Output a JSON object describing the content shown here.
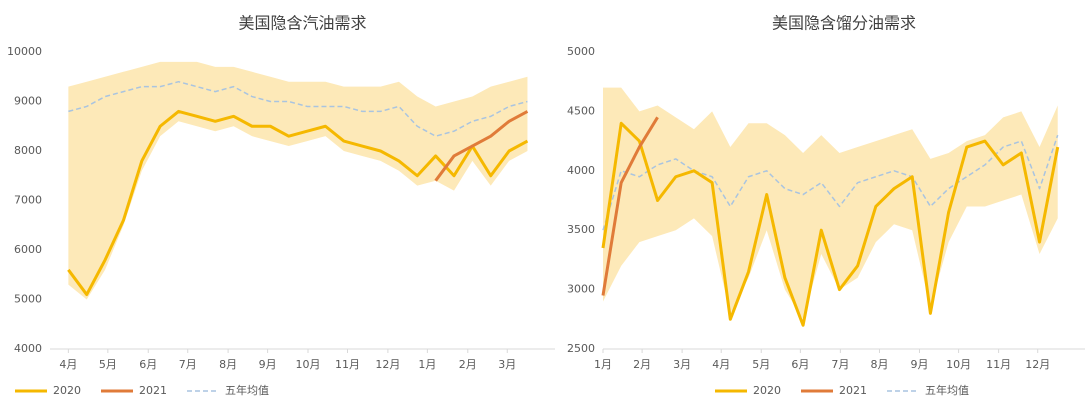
{
  "chart_data": [
    {
      "type": "line",
      "title": "美国隐含汽油需求",
      "x": [
        1,
        3,
        5,
        7,
        9,
        11,
        13,
        15,
        17,
        19,
        21,
        23,
        25,
        27,
        29,
        31,
        33,
        35,
        37,
        39,
        41,
        43,
        45,
        47,
        49,
        51
      ],
      "xlim": [
        -1,
        54
      ],
      "xticks": [
        {
          "value": 1,
          "label": "4月"
        },
        {
          "value": 5.3,
          "label": "5月"
        },
        {
          "value": 9.7,
          "label": "6月"
        },
        {
          "value": 14,
          "label": "7月"
        },
        {
          "value": 18.4,
          "label": "8月"
        },
        {
          "value": 22.7,
          "label": "9月"
        },
        {
          "value": 27.1,
          "label": "10月"
        },
        {
          "value": 31.4,
          "label": "11月"
        },
        {
          "value": 35.8,
          "label": "12月"
        },
        {
          "value": 40.1,
          "label": "1月"
        },
        {
          "value": 44.5,
          "label": "2月"
        },
        {
          "value": 48.8,
          "label": "3月"
        }
      ],
      "ylim": [
        4000,
        10000
      ],
      "yticks": [
        4000,
        5000,
        6000,
        7000,
        8000,
        9000,
        10000
      ],
      "grid": false,
      "band": {
        "color": "#fde9b8",
        "high": [
          9300,
          9400,
          9500,
          9600,
          9700,
          9800,
          9800,
          9800,
          9700,
          9700,
          9600,
          9500,
          9400,
          9400,
          9400,
          9300,
          9300,
          9300,
          9400,
          9100,
          8900,
          9000,
          9100,
          9300,
          9400,
          9500
        ],
        "low": [
          5300,
          5000,
          5600,
          6500,
          7600,
          8300,
          8600,
          8500,
          8400,
          8500,
          8300,
          8200,
          8100,
          8200,
          8300,
          8000,
          7900,
          7800,
          7600,
          7300,
          7400,
          7200,
          7800,
          7300,
          7800,
          8000
        ]
      },
      "series": [
        {
          "name": "2020",
          "color": "#f5b800",
          "values": [
            5600,
            5100,
            5800,
            6600,
            7800,
            8500,
            8800,
            8700,
            8600,
            8700,
            8500,
            8500,
            8300,
            8400,
            8500,
            8200,
            8100,
            8000,
            7800,
            7500,
            7900,
            7500,
            8100,
            7500,
            8000,
            8200
          ]
        },
        {
          "name": "2021",
          "color": "#e07b39",
          "values": [
            null,
            null,
            null,
            null,
            null,
            null,
            null,
            null,
            null,
            null,
            null,
            null,
            null,
            null,
            null,
            null,
            null,
            null,
            null,
            null,
            7400,
            7900,
            8100,
            8300,
            8600,
            8800
          ]
        },
        {
          "name": "五年均值",
          "color": "#a9c4e0",
          "dashed": true,
          "values": [
            8800,
            8900,
            9100,
            9200,
            9300,
            9300,
            9400,
            9300,
            9200,
            9300,
            9100,
            9000,
            9000,
            8900,
            8900,
            8900,
            8800,
            8800,
            8900,
            8500,
            8300,
            8400,
            8600,
            8700,
            8900,
            9000
          ]
        }
      ]
    },
    {
      "type": "line",
      "title": "美国隐含馏分油需求",
      "x": [
        1,
        3,
        5,
        7,
        9,
        11,
        13,
        15,
        17,
        19,
        21,
        23,
        25,
        27,
        29,
        31,
        33,
        35,
        37,
        39,
        41,
        43,
        45,
        47,
        49,
        51
      ],
      "xlim": [
        1,
        54
      ],
      "xticks": [
        {
          "value": 1,
          "label": "1月"
        },
        {
          "value": 5.3,
          "label": "2月"
        },
        {
          "value": 9.7,
          "label": "3月"
        },
        {
          "value": 14,
          "label": "4月"
        },
        {
          "value": 18.4,
          "label": "5月"
        },
        {
          "value": 22.7,
          "label": "6月"
        },
        {
          "value": 27.1,
          "label": "7月"
        },
        {
          "value": 31.4,
          "label": "8月"
        },
        {
          "value": 35.8,
          "label": "9月"
        },
        {
          "value": 40.1,
          "label": "10月"
        },
        {
          "value": 44.5,
          "label": "11月"
        },
        {
          "value": 48.8,
          "label": "12月"
        }
      ],
      "ylim": [
        2500,
        5000
      ],
      "yticks": [
        2500,
        3000,
        3500,
        4000,
        4500,
        5000
      ],
      "grid": false,
      "band": {
        "color": "#fde9b8",
        "high": [
          4700,
          4700,
          4500,
          4550,
          4450,
          4350,
          4500,
          4200,
          4400,
          4400,
          4300,
          4150,
          4300,
          4150,
          4200,
          4250,
          4300,
          4350,
          4100,
          4150,
          4250,
          4300,
          4450,
          4500,
          4200,
          4550
        ],
        "low": [
          2900,
          3200,
          3400,
          3450,
          3500,
          3600,
          3450,
          2800,
          3100,
          3500,
          3000,
          2750,
          3300,
          3000,
          3100,
          3400,
          3550,
          3500,
          2850,
          3400,
          3700,
          3700,
          3750,
          3800,
          3300,
          3600
        ]
      },
      "series": [
        {
          "name": "2020",
          "color": "#f5b800",
          "values": [
            3350,
            4400,
            4250,
            3750,
            3950,
            4000,
            3900,
            2750,
            3150,
            3800,
            3100,
            2700,
            3500,
            3000,
            3200,
            3700,
            3850,
            3950,
            2800,
            3650,
            4200,
            4250,
            4050,
            4150,
            3400,
            4200
          ]
        },
        {
          "name": "2021",
          "color": "#e07b39",
          "values": [
            2950,
            3900,
            4200,
            4450,
            null,
            null,
            null,
            null,
            null,
            null,
            null,
            null,
            null,
            null,
            null,
            null,
            null,
            null,
            null,
            null,
            null,
            null,
            null,
            null,
            null,
            null
          ]
        },
        {
          "name": "五年均值",
          "color": "#a9c4e0",
          "dashed": true,
          "values": [
            3500,
            4000,
            3950,
            4050,
            4100,
            4000,
            3950,
            3700,
            3950,
            4000,
            3850,
            3800,
            3900,
            3700,
            3900,
            3950,
            4000,
            3950,
            3700,
            3850,
            3950,
            4050,
            4200,
            4250,
            3850,
            4300
          ]
        }
      ]
    }
  ]
}
